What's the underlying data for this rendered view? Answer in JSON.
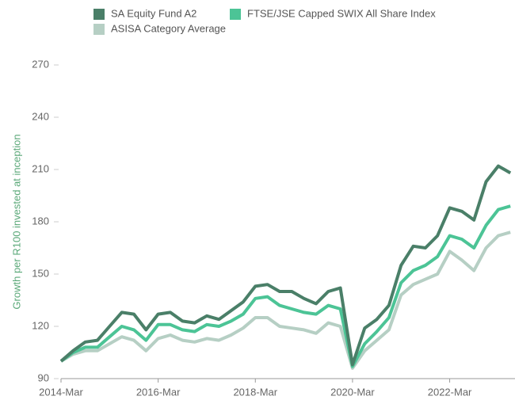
{
  "chart_data": {
    "type": "line",
    "y_label": "Growth per R100 invested at inception",
    "categories": [
      "2014-Mar",
      null,
      null,
      null,
      null,
      null,
      null,
      null,
      "2016-Mar",
      null,
      null,
      null,
      null,
      null,
      null,
      null,
      "2018-Mar",
      null,
      null,
      null,
      null,
      null,
      null,
      null,
      "2020-Mar",
      null,
      null,
      null,
      null,
      null,
      null,
      null,
      "2022-Mar",
      null,
      null,
      null,
      null,
      null
    ],
    "series": [
      {
        "name": "SA Equity Fund A2",
        "color": "#4a7f68",
        "values": [
          100,
          106,
          111,
          112,
          120,
          128,
          127,
          118,
          127,
          128,
          123,
          122,
          126,
          124,
          129,
          134,
          143,
          144,
          140,
          140,
          136,
          133,
          140,
          142,
          98,
          119,
          124,
          132,
          155,
          166,
          165,
          172,
          188,
          186,
          181,
          203,
          212,
          208
        ]
      },
      {
        "name": "FTSE/JSE Capped SWIX All Share Index",
        "color": "#4cc496",
        "values": [
          100,
          105,
          108,
          108,
          114,
          120,
          118,
          112,
          121,
          121,
          118,
          117,
          121,
          120,
          123,
          127,
          136,
          137,
          132,
          130,
          128,
          127,
          132,
          130,
          97,
          110,
          117,
          125,
          145,
          152,
          155,
          160,
          172,
          170,
          165,
          178,
          187,
          189
        ]
      },
      {
        "name": "ASISA Category Average",
        "color": "#b6cfc4",
        "values": [
          100,
          104,
          106,
          106,
          110,
          114,
          112,
          106,
          113,
          115,
          112,
          111,
          113,
          112,
          115,
          119,
          125,
          125,
          120,
          119,
          118,
          116,
          122,
          120,
          96,
          106,
          112,
          118,
          138,
          144,
          147,
          150,
          163,
          158,
          152,
          165,
          172,
          174
        ]
      }
    ],
    "ylim": [
      90,
      270
    ],
    "yticks": [
      90,
      120,
      150,
      180,
      210,
      240,
      270
    ],
    "grid": false,
    "legend": "top"
  }
}
